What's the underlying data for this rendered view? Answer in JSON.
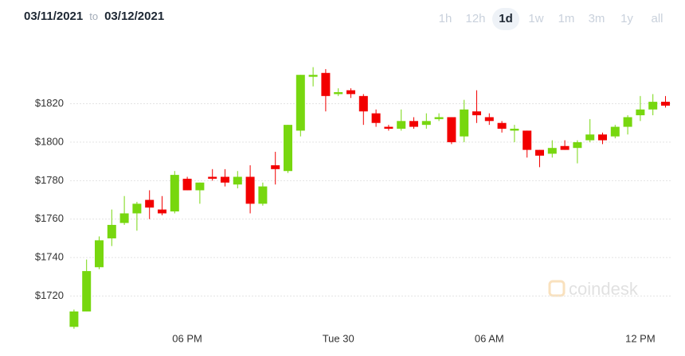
{
  "header": {
    "from": "03/11/2021",
    "to_word": "to",
    "to": "03/12/2021",
    "ranges": [
      "1h",
      "12h",
      "1d",
      "1w",
      "1m",
      "3m",
      "1y",
      "all"
    ],
    "active_range": "1d"
  },
  "chart_data": {
    "type": "candlestick",
    "watermark": "coindesk",
    "categories": [
      null,
      null,
      null,
      null,
      null,
      null,
      null,
      null,
      null,
      "06 PM",
      null,
      null,
      null,
      null,
      null,
      null,
      null,
      null,
      null,
      null,
      null,
      "Tue 30",
      null,
      null,
      null,
      null,
      null,
      null,
      null,
      null,
      null,
      null,
      null,
      "06 AM",
      null,
      null,
      null,
      null,
      null,
      null,
      null,
      null,
      null,
      null,
      null,
      "12 PM",
      null,
      null
    ],
    "open": [
      1704,
      1712,
      1735,
      1750,
      1758,
      1763,
      1770,
      1765,
      1764,
      1781,
      1775,
      1782,
      1782,
      1778,
      1782,
      1768,
      1788,
      1785,
      1806,
      1834,
      1836,
      1825,
      1827,
      1824,
      1815,
      1808,
      1807,
      1811,
      1809,
      1812,
      1813,
      1803,
      1816,
      1813,
      1810,
      1806,
      1806,
      1796,
      1794,
      1798,
      1797,
      1801,
      1804,
      1803,
      1808,
      1814,
      1817,
      1821
    ],
    "high": [
      1713,
      1739,
      1751,
      1765,
      1772,
      1769,
      1775,
      1772,
      1785,
      1782,
      1779,
      1786,
      1786,
      1785,
      1788,
      1779,
      1795,
      1809,
      1835,
      1839,
      1838,
      1828,
      1828,
      1825,
      1817,
      1809,
      1817,
      1813,
      1815,
      1815,
      1813,
      1822,
      1827,
      1815,
      1811,
      1809,
      1806,
      1796,
      1801,
      1801,
      1801,
      1812,
      1805,
      1809,
      1814,
      1824,
      1825,
      1824
    ],
    "low": [
      1703,
      1712,
      1734,
      1746,
      1757,
      1754,
      1760,
      1762,
      1763,
      1775,
      1768,
      1780,
      1777,
      1776,
      1763,
      1767,
      1778,
      1784,
      1803,
      1829,
      1816,
      1824,
      1823,
      1809,
      1808,
      1806,
      1806,
      1807,
      1807,
      1811,
      1799,
      1800,
      1810,
      1809,
      1805,
      1800,
      1792,
      1787,
      1792,
      1796,
      1789,
      1800,
      1799,
      1802,
      1804,
      1811,
      1814,
      1818
    ],
    "close": [
      1712,
      1733,
      1749,
      1757,
      1763,
      1768,
      1766,
      1763,
      1783,
      1775,
      1779,
      1781,
      1779,
      1782,
      1768,
      1777,
      1786,
      1809,
      1835,
      1835,
      1824,
      1826,
      1825,
      1816,
      1810,
      1807,
      1811,
      1808,
      1811,
      1813,
      1800,
      1817,
      1814,
      1811,
      1807,
      1807,
      1796,
      1793,
      1797,
      1796,
      1800,
      1804,
      1801,
      1808,
      1813,
      1817,
      1821,
      1819
    ],
    "up_color": "#77d70f",
    "down_color": "#f20000",
    "ylim": [
      1700,
      1845
    ],
    "yticks": [
      {
        "value": 1720,
        "label": "$1720"
      },
      {
        "value": 1740,
        "label": "$1740"
      },
      {
        "value": 1760,
        "label": "$1760"
      },
      {
        "value": 1780,
        "label": "$1780"
      },
      {
        "value": 1800,
        "label": "$1800"
      },
      {
        "value": 1820,
        "label": "$1820"
      }
    ],
    "grid": true
  }
}
